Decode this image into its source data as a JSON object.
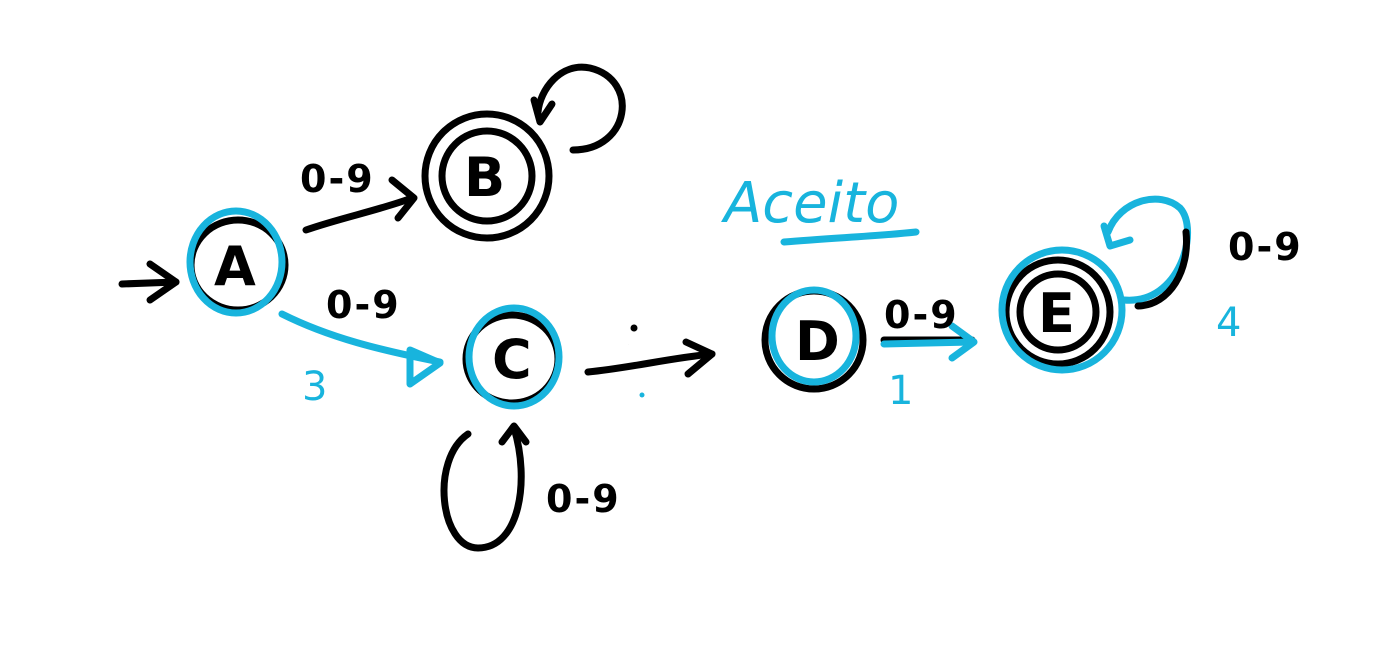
{
  "colors": {
    "ink": "#000000",
    "highlight": "#18b4dd",
    "background": "#ffffff"
  },
  "annotation": {
    "title": "Aceito"
  },
  "states": [
    {
      "id": "A",
      "label": "A",
      "accepting": false,
      "highlighted": true,
      "initial": true
    },
    {
      "id": "B",
      "label": "B",
      "accepting": true,
      "highlighted": false
    },
    {
      "id": "C",
      "label": "C",
      "accepting": false,
      "highlighted": true
    },
    {
      "id": "D",
      "label": "D",
      "accepting": false,
      "highlighted": true
    },
    {
      "id": "E",
      "label": "E",
      "accepting": true,
      "highlighted": true
    }
  ],
  "transitions": [
    {
      "from": "A",
      "to": "B",
      "label": "0-9"
    },
    {
      "from": "B",
      "to": "B",
      "label": ""
    },
    {
      "from": "A",
      "to": "C",
      "label": "0-9",
      "step": "3"
    },
    {
      "from": "C",
      "to": "C",
      "label": "0-9"
    },
    {
      "from": "C",
      "to": "D",
      "label": ".",
      "dotted": true
    },
    {
      "from": "D",
      "to": "E",
      "label": "0-9",
      "step": "1"
    },
    {
      "from": "E",
      "to": "E",
      "label": "0-9",
      "step": "4"
    }
  ]
}
